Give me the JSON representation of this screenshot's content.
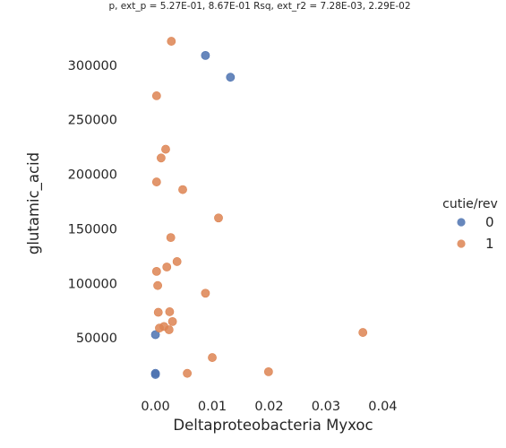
{
  "chart_data": {
    "type": "scatter",
    "title": "p, ext_p = 5.27E-01, 8.67E-01 Rsq, ext_r2 = 7.28E-03, 2.29E-02",
    "xlabel": "Deltaproteobacteria Myxoc",
    "ylabel": "glutamic_acid",
    "xlim": [
      -0.0045,
      0.0475
    ],
    "ylim": [
      0,
      336000
    ],
    "xticks": [
      0.0,
      0.01,
      0.02,
      0.03,
      0.04
    ],
    "xtick_labels": [
      "0.00",
      "0.01",
      "0.02",
      "0.03",
      "0.04"
    ],
    "yticks": [
      50000,
      100000,
      150000,
      200000,
      250000,
      300000
    ],
    "ytick_labels": [
      "50000",
      "100000",
      "150000",
      "200000",
      "250000",
      "300000"
    ],
    "grid": false,
    "legend": {
      "title": "cutie/rev",
      "placement": "right"
    },
    "series": [
      {
        "name": "0",
        "color": "#4c72b0",
        "points": [
          {
            "x": 0.0088,
            "y": 309000
          },
          {
            "x": 0.0132,
            "y": 289000
          },
          {
            "x": 0.0,
            "y": 53000
          },
          {
            "x": 0.0,
            "y": 17500
          },
          {
            "x": 0.0,
            "y": 16500
          }
        ]
      },
      {
        "name": "1",
        "color": "#dd8452",
        "points": [
          {
            "x": 0.0028,
            "y": 322000
          },
          {
            "x": 0.0002,
            "y": 272000
          },
          {
            "x": 0.0018,
            "y": 223000
          },
          {
            "x": 0.001,
            "y": 215000
          },
          {
            "x": 0.0002,
            "y": 193000
          },
          {
            "x": 0.0048,
            "y": 186000
          },
          {
            "x": 0.0111,
            "y": 160000
          },
          {
            "x": 0.0027,
            "y": 142000
          },
          {
            "x": 0.0038,
            "y": 120000
          },
          {
            "x": 0.002,
            "y": 115000
          },
          {
            "x": 0.0002,
            "y": 111000
          },
          {
            "x": 0.0004,
            "y": 98000
          },
          {
            "x": 0.0088,
            "y": 91000
          },
          {
            "x": 0.0005,
            "y": 73500
          },
          {
            "x": 0.0025,
            "y": 74000
          },
          {
            "x": 0.003,
            "y": 65000
          },
          {
            "x": 0.0015,
            "y": 60500
          },
          {
            "x": 0.0007,
            "y": 59000
          },
          {
            "x": 0.0024,
            "y": 57500
          },
          {
            "x": 0.0365,
            "y": 55000
          },
          {
            "x": 0.01,
            "y": 32000
          },
          {
            "x": 0.0199,
            "y": 19000
          },
          {
            "x": 0.0056,
            "y": 17500
          }
        ]
      }
    ]
  }
}
